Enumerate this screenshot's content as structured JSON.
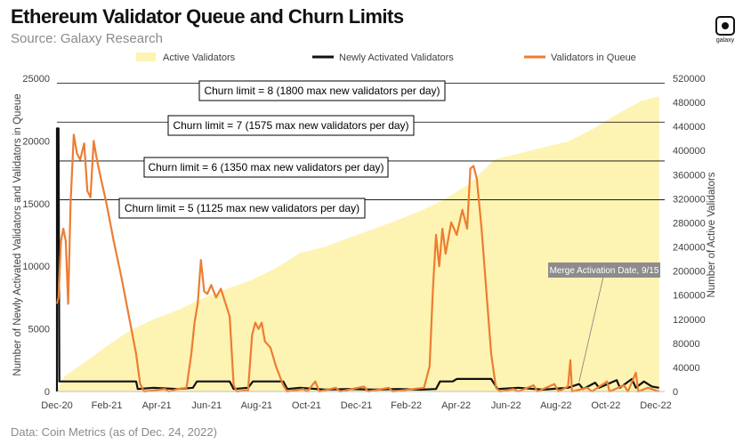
{
  "header": {
    "title": "Ethereum Validator Queue and Churn Limits",
    "subtitle": "Source: Galaxy Research",
    "logo_text": "galaxy"
  },
  "footer": {
    "text": "Data: Coin Metrics (as of Dec. 24, 2022)"
  },
  "colors": {
    "active": "#fdf3b3",
    "newly": "#111111",
    "queue": "#ed7d31",
    "grid": "#d9d9d9"
  },
  "chart_data": {
    "type": "line",
    "x_ticks": [
      "Dec-20",
      "Feb-21",
      "Apr-21",
      "Jun-21",
      "Aug-21",
      "Oct-21",
      "Dec-21",
      "Feb-22",
      "Apr-22",
      "Jun-22",
      "Aug-22",
      "Oct-22",
      "Dec-22"
    ],
    "xlim": [
      "2020-12-01",
      "2022-12-31"
    ],
    "ylabel_left": "Number of Newly Activated Validators and Validators in Queue",
    "ylabel_right": "Number of Active Validators",
    "ylim_left": [
      0,
      25000
    ],
    "ylim_right": [
      0,
      520000
    ],
    "yticks_left": [
      0,
      5000,
      10000,
      15000,
      20000,
      25000
    ],
    "yticks_right": [
      0,
      40000,
      80000,
      120000,
      160000,
      200000,
      240000,
      280000,
      320000,
      360000,
      400000,
      440000,
      480000,
      520000
    ],
    "legend": [
      {
        "key": "active",
        "name": "Active Validators"
      },
      {
        "key": "newly",
        "name": "Newly Activated Validators"
      },
      {
        "key": "queue",
        "name": "Validators in Queue"
      }
    ],
    "churn_lines": [
      {
        "label": "Churn limit = 8 (1800 max new validators per day)",
        "y": 24600
      },
      {
        "label": "Churn limit = 7 (1575 max new validators per day)",
        "y": 21500
      },
      {
        "label": "Churn limit = 6 (1350 max new validators per day)",
        "y": 18400
      },
      {
        "label": "Churn limit = 5 (1125 max new validators per day)",
        "y": 15300
      }
    ],
    "annotation": {
      "label": "Merge Activation Date, 9/15",
      "date": "2022-09-15",
      "y": 800
    },
    "series": [
      {
        "key": "active",
        "name": "Active Validators",
        "axis": "right",
        "points": [
          [
            "2020-12-01",
            0
          ],
          [
            "2020-12-10",
            25000
          ],
          [
            "2021-01-01",
            45000
          ],
          [
            "2021-02-01",
            75000
          ],
          [
            "2021-03-01",
            100000
          ],
          [
            "2021-04-01",
            120000
          ],
          [
            "2021-05-01",
            135000
          ],
          [
            "2021-06-01",
            155000
          ],
          [
            "2021-07-01",
            170000
          ],
          [
            "2021-08-01",
            185000
          ],
          [
            "2021-09-01",
            205000
          ],
          [
            "2021-10-01",
            230000
          ],
          [
            "2021-11-01",
            240000
          ],
          [
            "2021-12-01",
            255000
          ],
          [
            "2022-01-01",
            270000
          ],
          [
            "2022-02-01",
            285000
          ],
          [
            "2022-03-01",
            300000
          ],
          [
            "2022-04-01",
            320000
          ],
          [
            "2022-05-01",
            345000
          ],
          [
            "2022-06-01",
            385000
          ],
          [
            "2022-07-01",
            395000
          ],
          [
            "2022-08-01",
            405000
          ],
          [
            "2022-09-01",
            415000
          ],
          [
            "2022-10-01",
            435000
          ],
          [
            "2022-11-01",
            460000
          ],
          [
            "2022-12-01",
            482000
          ],
          [
            "2022-12-24",
            490000
          ]
        ]
      },
      {
        "key": "newly",
        "name": "Newly Activated Validators",
        "axis": "left",
        "points": [
          [
            "2020-12-01",
            0
          ],
          [
            "2020-12-01",
            21000
          ],
          [
            "2020-12-03",
            21000
          ],
          [
            "2020-12-04",
            800
          ],
          [
            "2021-03-10",
            800
          ],
          [
            "2021-03-12",
            200
          ],
          [
            "2021-04-01",
            300
          ],
          [
            "2021-05-01",
            200
          ],
          [
            "2021-05-20",
            300
          ],
          [
            "2021-05-25",
            800
          ],
          [
            "2021-07-05",
            800
          ],
          [
            "2021-07-10",
            200
          ],
          [
            "2021-07-28",
            300
          ],
          [
            "2021-08-03",
            800
          ],
          [
            "2021-09-10",
            800
          ],
          [
            "2021-09-15",
            200
          ],
          [
            "2021-10-01",
            300
          ],
          [
            "2021-11-01",
            150
          ],
          [
            "2021-12-01",
            200
          ],
          [
            "2022-01-01",
            150
          ],
          [
            "2022-02-01",
            200
          ],
          [
            "2022-03-01",
            150
          ],
          [
            "2022-03-20",
            200
          ],
          [
            "2022-03-25",
            800
          ],
          [
            "2022-04-10",
            800
          ],
          [
            "2022-04-15",
            1000
          ],
          [
            "2022-05-28",
            1000
          ],
          [
            "2022-06-05",
            200
          ],
          [
            "2022-07-01",
            300
          ],
          [
            "2022-08-01",
            150
          ],
          [
            "2022-09-01",
            300
          ],
          [
            "2022-09-15",
            600
          ],
          [
            "2022-09-20",
            200
          ],
          [
            "2022-10-05",
            700
          ],
          [
            "2022-10-10",
            300
          ],
          [
            "2022-11-01",
            900
          ],
          [
            "2022-11-05",
            300
          ],
          [
            "2022-11-20",
            1000
          ],
          [
            "2022-11-25",
            300
          ],
          [
            "2022-12-05",
            800
          ],
          [
            "2022-12-15",
            400
          ],
          [
            "2022-12-24",
            300
          ]
        ]
      },
      {
        "key": "queue",
        "name": "Validators in Queue",
        "axis": "left",
        "points": [
          [
            "2020-12-01",
            7000
          ],
          [
            "2020-12-03",
            7500
          ],
          [
            "2020-12-06",
            12000
          ],
          [
            "2020-12-09",
            13000
          ],
          [
            "2020-12-12",
            12000
          ],
          [
            "2020-12-15",
            7000
          ],
          [
            "2020-12-18",
            15000
          ],
          [
            "2020-12-22",
            20500
          ],
          [
            "2020-12-26",
            19000
          ],
          [
            "2020-12-30",
            18500
          ],
          [
            "2021-01-04",
            19800
          ],
          [
            "2021-01-08",
            16000
          ],
          [
            "2021-01-12",
            15500
          ],
          [
            "2021-01-16",
            20000
          ],
          [
            "2021-01-20",
            18500
          ],
          [
            "2021-01-25",
            17000
          ],
          [
            "2021-02-01",
            15000
          ],
          [
            "2021-02-10",
            12000
          ],
          [
            "2021-02-20",
            9000
          ],
          [
            "2021-03-01",
            6000
          ],
          [
            "2021-03-10",
            3000
          ],
          [
            "2021-03-15",
            600
          ],
          [
            "2021-03-20",
            0
          ],
          [
            "2021-04-15",
            200
          ],
          [
            "2021-04-20",
            0
          ],
          [
            "2021-05-01",
            200
          ],
          [
            "2021-05-12",
            300
          ],
          [
            "2021-05-18",
            3000
          ],
          [
            "2021-05-22",
            5500
          ],
          [
            "2021-05-26",
            7000
          ],
          [
            "2021-05-30",
            10500
          ],
          [
            "2021-06-03",
            8000
          ],
          [
            "2021-06-07",
            7800
          ],
          [
            "2021-06-12",
            8500
          ],
          [
            "2021-06-18",
            7500
          ],
          [
            "2021-06-24",
            8200
          ],
          [
            "2021-06-30",
            7000
          ],
          [
            "2021-07-05",
            6000
          ],
          [
            "2021-07-10",
            500
          ],
          [
            "2021-07-14",
            0
          ],
          [
            "2021-07-28",
            100
          ],
          [
            "2021-08-02",
            4500
          ],
          [
            "2021-08-06",
            5500
          ],
          [
            "2021-08-10",
            5000
          ],
          [
            "2021-08-14",
            5500
          ],
          [
            "2021-08-18",
            4000
          ],
          [
            "2021-08-25",
            3500
          ],
          [
            "2021-09-01",
            2000
          ],
          [
            "2021-09-10",
            500
          ],
          [
            "2021-09-15",
            0
          ],
          [
            "2021-10-05",
            200
          ],
          [
            "2021-10-10",
            0
          ],
          [
            "2021-10-20",
            800
          ],
          [
            "2021-10-25",
            0
          ],
          [
            "2021-11-15",
            300
          ],
          [
            "2021-11-20",
            0
          ],
          [
            "2021-12-20",
            400
          ],
          [
            "2021-12-25",
            0
          ],
          [
            "2022-01-20",
            300
          ],
          [
            "2022-01-25",
            0
          ],
          [
            "2022-02-20",
            200
          ],
          [
            "2022-03-05",
            300
          ],
          [
            "2022-03-12",
            2000
          ],
          [
            "2022-03-16",
            8000
          ],
          [
            "2022-03-20",
            12500
          ],
          [
            "2022-03-24",
            10000
          ],
          [
            "2022-03-28",
            13000
          ],
          [
            "2022-04-01",
            11000
          ],
          [
            "2022-04-08",
            13500
          ],
          [
            "2022-04-15",
            12500
          ],
          [
            "2022-04-22",
            14500
          ],
          [
            "2022-04-28",
            13000
          ],
          [
            "2022-05-02",
            17800
          ],
          [
            "2022-05-06",
            18000
          ],
          [
            "2022-05-10",
            17000
          ],
          [
            "2022-05-16",
            13000
          ],
          [
            "2022-05-22",
            8000
          ],
          [
            "2022-05-28",
            3000
          ],
          [
            "2022-06-03",
            300
          ],
          [
            "2022-06-08",
            0
          ],
          [
            "2022-06-25",
            200
          ],
          [
            "2022-07-01",
            0
          ],
          [
            "2022-07-20",
            500
          ],
          [
            "2022-07-25",
            0
          ],
          [
            "2022-08-15",
            600
          ],
          [
            "2022-08-20",
            0
          ],
          [
            "2022-09-01",
            400
          ],
          [
            "2022-09-04",
            2500
          ],
          [
            "2022-09-06",
            0
          ],
          [
            "2022-09-25",
            300
          ],
          [
            "2022-10-01",
            0
          ],
          [
            "2022-10-20",
            800
          ],
          [
            "2022-10-23",
            0
          ],
          [
            "2022-11-10",
            500
          ],
          [
            "2022-11-15",
            0
          ],
          [
            "2022-11-25",
            1500
          ],
          [
            "2022-11-28",
            0
          ],
          [
            "2022-12-10",
            300
          ],
          [
            "2022-12-24",
            0
          ]
        ]
      }
    ]
  }
}
